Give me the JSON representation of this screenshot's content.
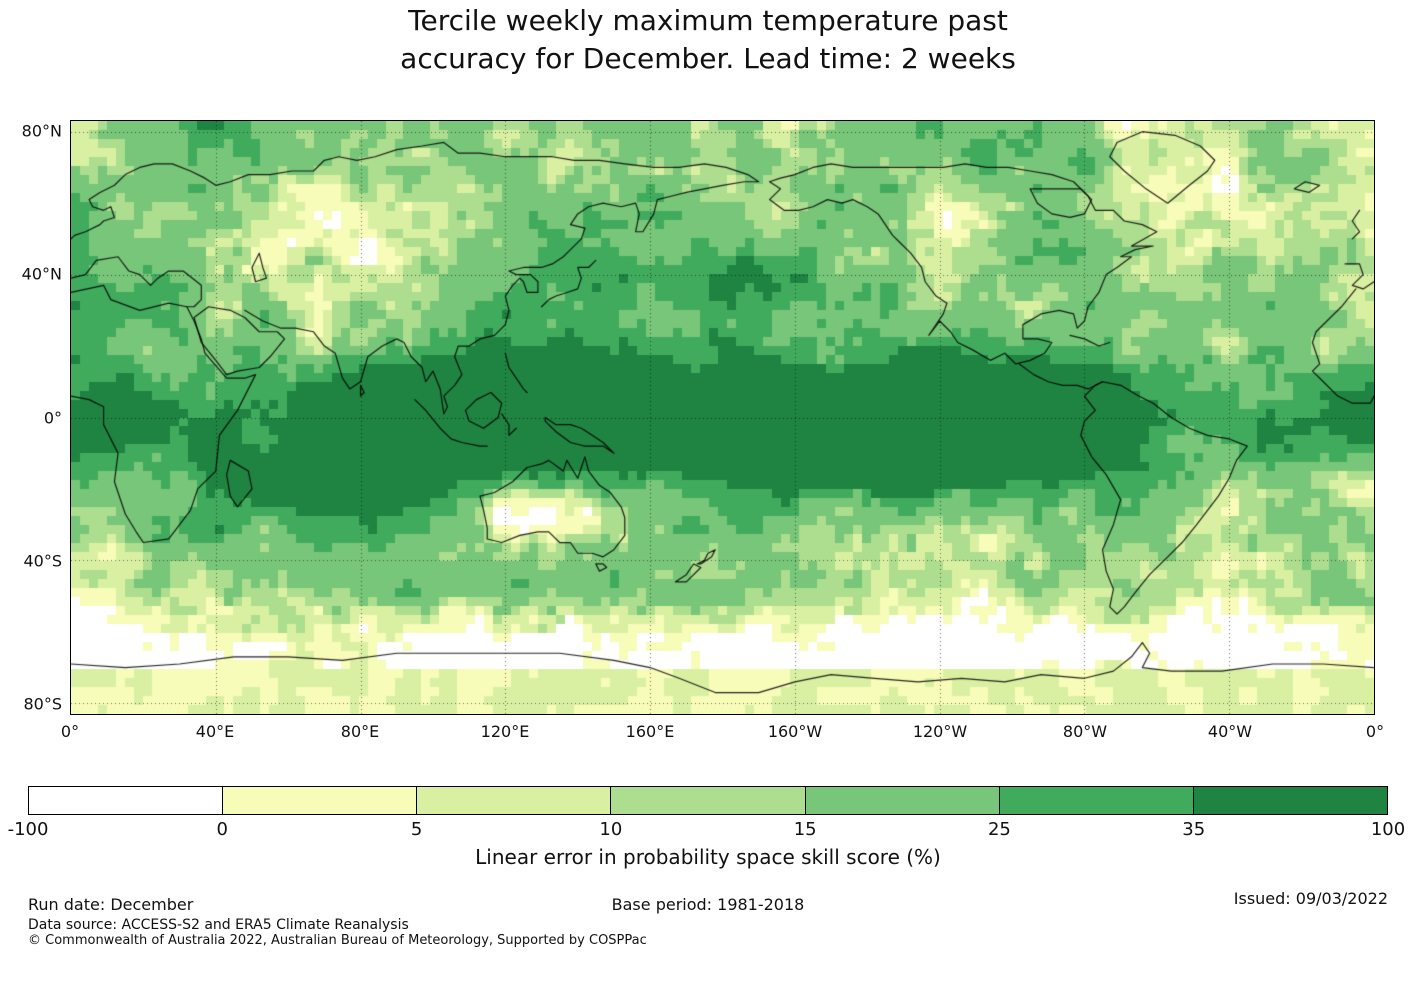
{
  "title": {
    "line1": "Tercile weekly maximum temperature past",
    "line2": "accuracy for December. Lead time: 2 weeks"
  },
  "map": {
    "lat_ticks": [
      {
        "label": "80°N",
        "value": 80
      },
      {
        "label": "40°N",
        "value": 40
      },
      {
        "label": "0°",
        "value": 0
      },
      {
        "label": "40°S",
        "value": -40
      },
      {
        "label": "80°S",
        "value": -80
      }
    ],
    "lon_ticks": [
      {
        "label": "0°",
        "deg": 0
      },
      {
        "label": "40°E",
        "deg": 40
      },
      {
        "label": "80°E",
        "deg": 80
      },
      {
        "label": "120°E",
        "deg": 120
      },
      {
        "label": "160°E",
        "deg": 160
      },
      {
        "label": "160°W",
        "deg": 200
      },
      {
        "label": "120°W",
        "deg": 240
      },
      {
        "label": "80°W",
        "deg": 280
      },
      {
        "label": "40°W",
        "deg": 320
      },
      {
        "label": "0°",
        "deg": 360
      }
    ]
  },
  "colorbar": {
    "label": "Linear error in probability space skill score (%)",
    "ticks": [
      "-100",
      "0",
      "5",
      "10",
      "15",
      "25",
      "35",
      "100"
    ],
    "boundaries": [
      -100,
      0,
      5,
      10,
      15,
      25,
      35,
      100
    ],
    "colors": [
      "#ffffff",
      "#f7fcb9",
      "#d9f0a3",
      "#addd8e",
      "#78c679",
      "#41ab5d",
      "#1f8441"
    ]
  },
  "footer": {
    "run_date": "Run date: December",
    "base_period": "Base period: 1981-2018",
    "issued": "Issued: 09/03/2022",
    "data_source": "Data source: ACCESS-S2 and ERA5 Climate Reanalysis",
    "copyright": "© Commonwealth of Australia 2022, Australian Bureau of Meteorology, Supported by COSPPac"
  }
}
